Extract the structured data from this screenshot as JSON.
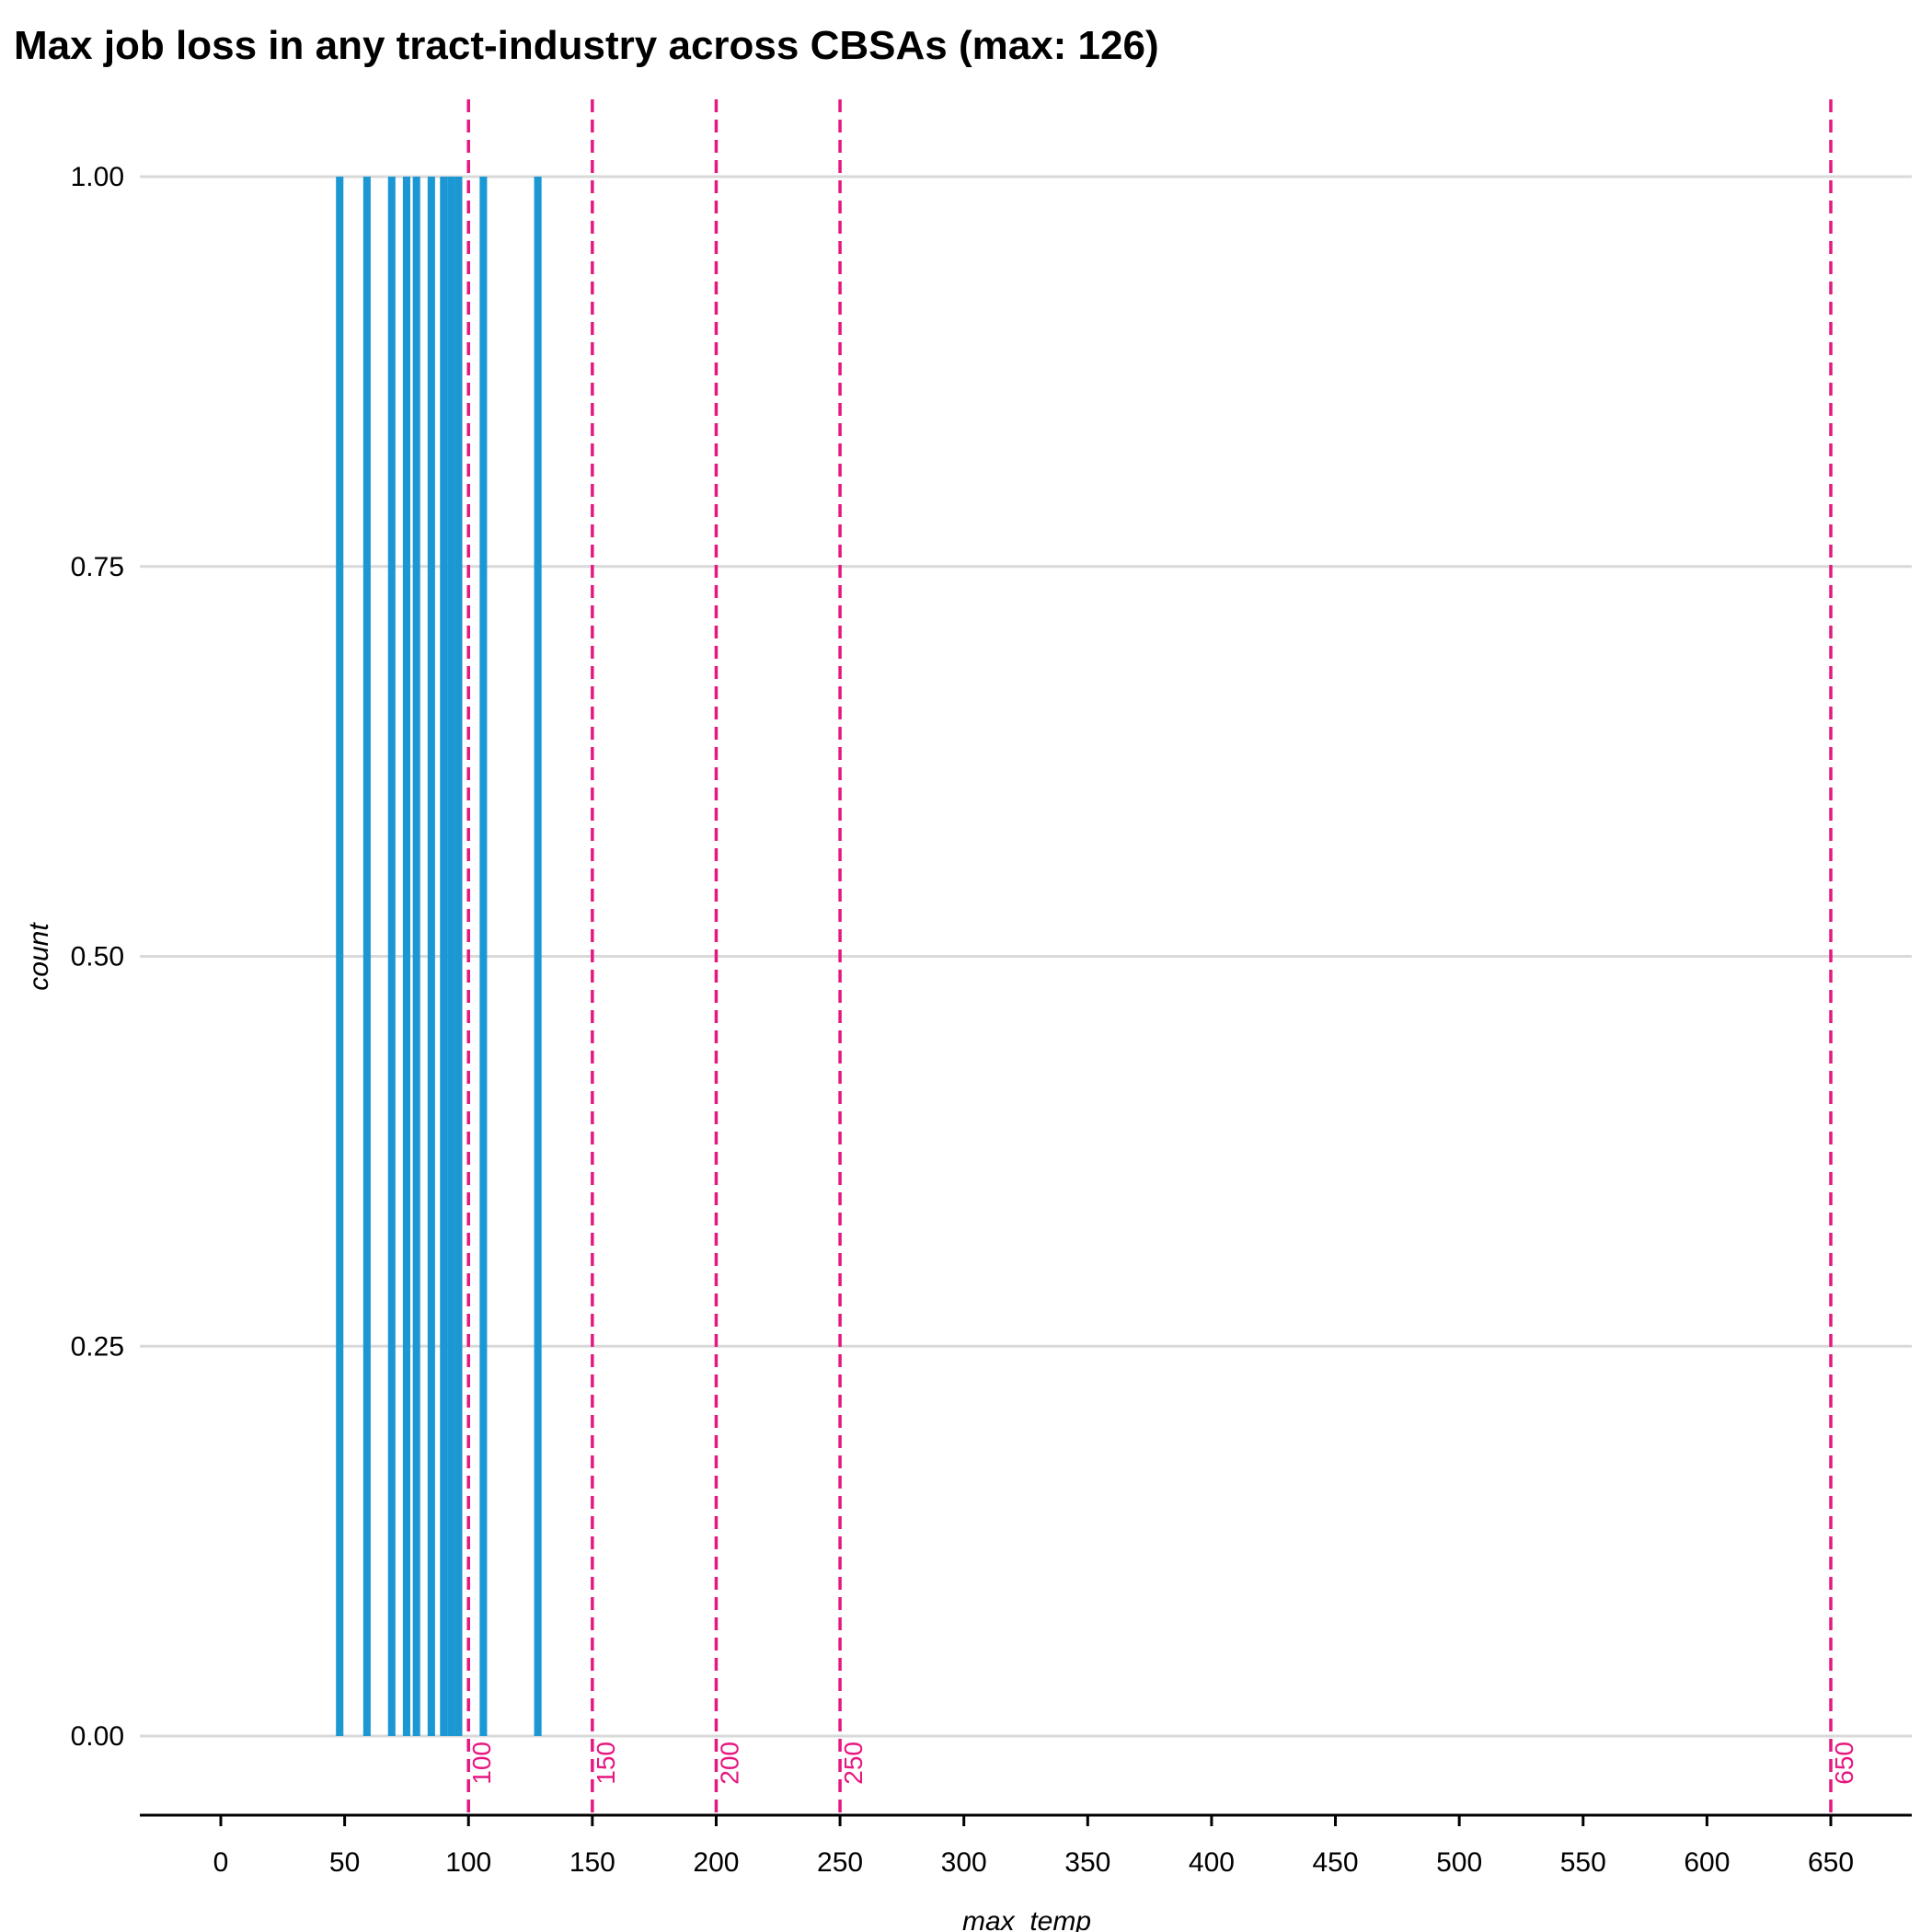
{
  "chart_data": {
    "type": "bar",
    "title": "Max job loss in any tract-industry across CBSAs (max: 126)",
    "xlabel": "max_temp",
    "ylabel": "count",
    "xlim": [
      -32,
      683
    ],
    "ylim": [
      -0.2,
      1.0
    ],
    "x_ticks": [
      "0",
      "50",
      "100",
      "150",
      "200",
      "250",
      "300",
      "350",
      "400",
      "450",
      "500",
      "550",
      "600",
      "650"
    ],
    "y_ticks": [
      "0.00",
      "0.25",
      "0.50",
      "0.75",
      "1.00"
    ],
    "bin_width": 3,
    "bars": [
      {
        "x": 48,
        "count": 1
      },
      {
        "x": 59,
        "count": 1
      },
      {
        "x": 69,
        "count": 1
      },
      {
        "x": 75,
        "count": 1
      },
      {
        "x": 79,
        "count": 1
      },
      {
        "x": 85,
        "count": 1
      },
      {
        "x": 90,
        "count": 1
      },
      {
        "x": 93,
        "count": 1
      },
      {
        "x": 96,
        "count": 1
      },
      {
        "x": 106,
        "count": 1
      },
      {
        "x": 128,
        "count": 1
      }
    ],
    "reference_lines": [
      {
        "x": 100,
        "label": "100"
      },
      {
        "x": 150,
        "label": "150"
      },
      {
        "x": 200,
        "label": "200"
      },
      {
        "x": 250,
        "label": "250"
      },
      {
        "x": 650,
        "label": "650"
      }
    ],
    "grid": "horizontal major gridlines only",
    "colors": {
      "bar": "#1b97d3",
      "reference_line": "#e6177f",
      "grid": "#d9d9d9",
      "axis": "#000000"
    }
  }
}
